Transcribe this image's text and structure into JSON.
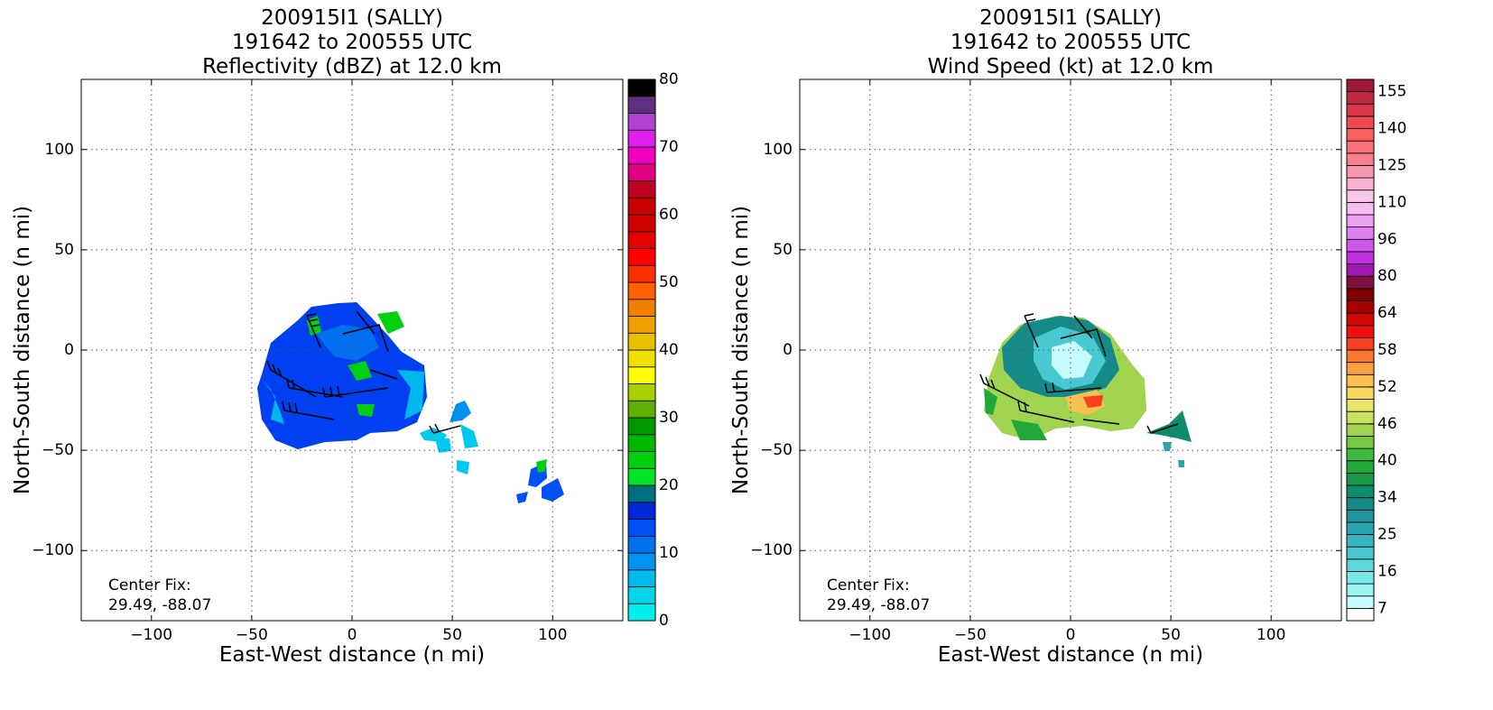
{
  "chart_data": [
    {
      "type": "heatmap",
      "title": [
        "200915I1 (SALLY)",
        "191642 to 200555 UTC",
        "Reflectivity (dBZ) at 12.0 km"
      ],
      "xlabel": "East-West distance (n mi)",
      "ylabel": "North-South distance (n mi)",
      "xlim": [
        -135,
        135
      ],
      "ylim": [
        -135,
        135
      ],
      "xticks": [
        {
          "value": -100,
          "label": "−100"
        },
        {
          "value": -50,
          "label": "−50"
        },
        0,
        50,
        100
      ],
      "yticks": [
        {
          "value": -100,
          "label": "−100"
        },
        {
          "value": -50,
          "label": "−50"
        },
        0,
        50,
        100
      ],
      "grid": true,
      "annotation": [
        "Center Fix:",
        "29.49, -88.07"
      ],
      "colorbar": {
        "lim": [
          0,
          80
        ],
        "ticks": [
          0,
          10,
          20,
          30,
          40,
          50,
          60,
          70,
          80
        ],
        "colors": [
          "#00eeee",
          "#00d6e6",
          "#00baee",
          "#0094f0",
          "#0070f0",
          "#0050f8",
          "#0028d8",
          "#00707e",
          "#00e428",
          "#00d010",
          "#00b800",
          "#009800",
          "#60b000",
          "#a8d000",
          "#ffff00",
          "#f0e000",
          "#e8c000",
          "#f0a000",
          "#f08000",
          "#ff6000",
          "#ff3000",
          "#ff0000",
          "#e80000",
          "#d00000",
          "#c80000",
          "#c00020",
          "#e00080",
          "#f000c0",
          "#e020f0",
          "#b040d0",
          "#603080",
          "#000000"
        ]
      }
    },
    {
      "type": "heatmap",
      "title": [
        "200915I1 (SALLY)",
        "191642 to 200555 UTC",
        "Wind Speed (kt) at 12.0 km"
      ],
      "xlabel": "East-West distance (n mi)",
      "ylabel": "North-South distance (n mi)",
      "xlim": [
        -135,
        135
      ],
      "ylim": [
        -135,
        135
      ],
      "xticks": [
        {
          "value": -100,
          "label": "−100"
        },
        {
          "value": -50,
          "label": "−50"
        },
        0,
        50,
        100
      ],
      "yticks": [
        {
          "value": -100,
          "label": "−100"
        },
        {
          "value": -50,
          "label": "−50"
        },
        0,
        50,
        100
      ],
      "grid": true,
      "annotation": [
        "Center Fix:",
        "29.49, -88.07"
      ],
      "colorbar": {
        "ticks": [
          7,
          16,
          25,
          34,
          40,
          46,
          52,
          58,
          64,
          80,
          96,
          110,
          125,
          140,
          155
        ],
        "colors": [
          "#ffffff",
          "#c8fcfc",
          "#9cf4f4",
          "#78e8e8",
          "#5cd8dc",
          "#48c8d0",
          "#38b4c0",
          "#2aa4b0",
          "#20949c",
          "#168a88",
          "#0e8c6c",
          "#1a9a48",
          "#22a838",
          "#40b840",
          "#78c848",
          "#a0d450",
          "#c8e060",
          "#e8e468",
          "#f8d860",
          "#f8c050",
          "#f8a040",
          "#f87830",
          "#f84020",
          "#f01010",
          "#d00808",
          "#a80000",
          "#800000",
          "#801040",
          "#a018b0",
          "#c030e0",
          "#d058e8",
          "#e080f0",
          "#eca0f4",
          "#f4bcf0",
          "#f8c8e8",
          "#fab0d0",
          "#f898b0",
          "#f88090",
          "#f87078",
          "#f86060",
          "#f04850",
          "#d83848",
          "#c02840",
          "#a01838"
        ]
      }
    }
  ]
}
